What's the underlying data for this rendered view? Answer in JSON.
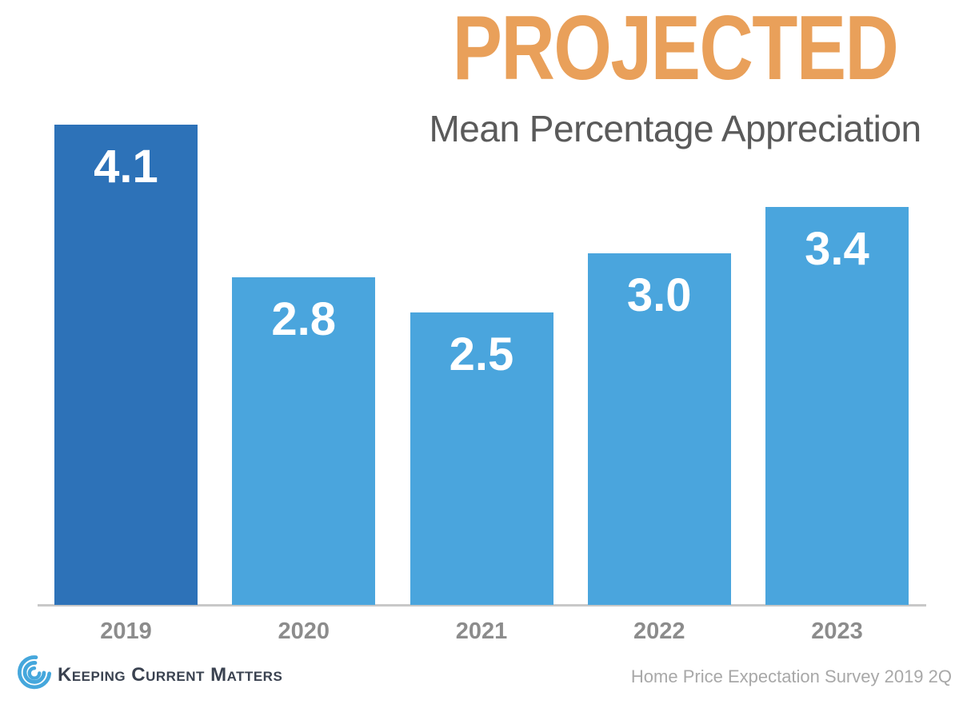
{
  "header": {
    "title": "PROJECTED",
    "subtitle": "Mean Percentage Appreciation"
  },
  "chart_data": {
    "type": "bar",
    "title": "PROJECTED",
    "subtitle": "Mean Percentage Appreciation",
    "categories": [
      "2019",
      "2020",
      "2021",
      "2022",
      "2023"
    ],
    "values": [
      4.1,
      2.8,
      2.5,
      3.0,
      3.4
    ],
    "value_labels": [
      "4.1",
      "2.8",
      "2.5",
      "3.0",
      "3.4"
    ],
    "bar_colors": [
      "#2D72B8",
      "#4AA5DD",
      "#4AA5DD",
      "#4AA5DD",
      "#4AA5DD"
    ],
    "highlight_color": "#2D72B8",
    "default_bar_color": "#4AA5DD",
    "value_label_color": "#FFFFFF",
    "ylim": [
      0,
      4.1
    ],
    "gridlines": false,
    "legend": "none",
    "xlabel": "",
    "ylabel": ""
  },
  "footer": {
    "brand": "Keeping Current Matters",
    "source": "Home Price Expectation Survey 2019 2Q"
  },
  "colors": {
    "title_orange": "#E9A05A",
    "subtitle_gray": "#5A5A5A",
    "axis_gray": "#C8C8C8",
    "year_label_gray": "#8C8C8C",
    "brand_navy": "#3A4250",
    "source_gray": "#A8A8A8",
    "logo_blue": "#45A7DC",
    "background": "#FFFFFF"
  }
}
